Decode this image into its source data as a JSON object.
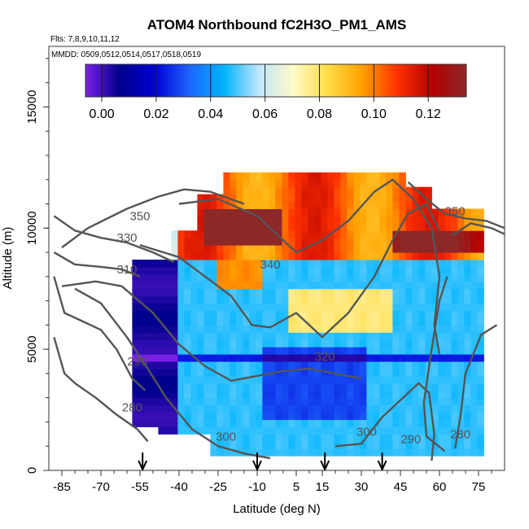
{
  "chart_data": {
    "type": "heatmap",
    "title": "ATOM4 Northbound fC2H3O_PM1_AMS",
    "subtitle_flights": "Flts: 7,8,9,10,11,12",
    "subtitle_dates": "MMDD: 0509,0512,0514,0517,0518,0519",
    "xlabel": "Latitude (deg N)",
    "ylabel": "Altitude (m)",
    "xlim": [
      -90,
      85
    ],
    "ylim": [
      0,
      17500
    ],
    "x_ticks": [
      -85,
      -70,
      -55,
      -40,
      -25,
      -10,
      5,
      15,
      30,
      45,
      60,
      75
    ],
    "y_ticks": [
      0,
      5000,
      10000,
      15000
    ],
    "colorbar": {
      "range": [
        -0.006,
        0.134
      ],
      "ticks": [
        "0.00",
        "0.02",
        "0.04",
        "0.06",
        "0.08",
        "0.10",
        "0.12"
      ],
      "tick_values": [
        0,
        0.02,
        0.04,
        0.06,
        0.08,
        0.1,
        0.12
      ]
    },
    "colors": {
      "contour": "#555555",
      "colormap": [
        "#7a1fe6",
        "#00008c",
        "#0000d2",
        "#1e64ff",
        "#00b4ff",
        "#bfe6ff",
        "#fffac8",
        "#ffdc46",
        "#ffa000",
        "#ff3200",
        "#b40000",
        "#8c2828"
      ]
    },
    "arrows_lat": [
      -54,
      -10,
      16,
      38
    ],
    "contour_labels": [
      {
        "text": "350",
        "lat": -55,
        "alt": 10500
      },
      {
        "text": "330",
        "lat": -60,
        "alt": 9600
      },
      {
        "text": "310",
        "lat": -60,
        "alt": 8300
      },
      {
        "text": "290",
        "lat": -56,
        "alt": 4500
      },
      {
        "text": "280",
        "lat": -58,
        "alt": 2600
      },
      {
        "text": "300",
        "lat": -22,
        "alt": 1400
      },
      {
        "text": "340",
        "lat": -5,
        "alt": 8500
      },
      {
        "text": "320",
        "lat": 16,
        "alt": 4700
      },
      {
        "text": "300",
        "lat": 32,
        "alt": 1600
      },
      {
        "text": "290",
        "lat": 49,
        "alt": 1300
      },
      {
        "text": "280",
        "lat": 68,
        "alt": 1500
      },
      {
        "text": "350",
        "lat": 66,
        "alt": 10700
      }
    ],
    "contours": [
      {
        "level": "350",
        "points": [
          [
            -85,
            9200
          ],
          [
            -75,
            10000
          ],
          [
            -60,
            10800
          ],
          [
            -48,
            11300
          ],
          [
            -38,
            11600
          ],
          [
            -28,
            11500
          ],
          [
            -15,
            11000
          ]
        ]
      },
      {
        "level": "330",
        "points": [
          [
            -88,
            10500
          ],
          [
            -80,
            9900
          ],
          [
            -70,
            9600
          ],
          [
            -60,
            9400
          ],
          [
            -50,
            9000
          ],
          [
            -42,
            8600
          ]
        ]
      },
      {
        "level": "310",
        "points": [
          [
            -88,
            9000
          ],
          [
            -80,
            8500
          ],
          [
            -70,
            8400
          ],
          [
            -62,
            8300
          ],
          [
            -55,
            8000
          ]
        ]
      },
      {
        "level": "290",
        "points": [
          [
            -88,
            8000
          ],
          [
            -84,
            6500
          ],
          [
            -78,
            6200
          ],
          [
            -70,
            5800
          ],
          [
            -64,
            5000
          ],
          [
            -58,
            3800
          ],
          [
            -53,
            3300
          ]
        ]
      },
      {
        "level": "280",
        "points": [
          [
            -88,
            5500
          ],
          [
            -84,
            4000
          ],
          [
            -80,
            3600
          ],
          [
            -72,
            3000
          ],
          [
            -64,
            2300
          ],
          [
            -56,
            1700
          ],
          [
            -52,
            1200
          ]
        ]
      },
      {
        "level": "300-south",
        "points": [
          [
            -80,
            7500
          ],
          [
            -70,
            6900
          ],
          [
            -60,
            5500
          ],
          [
            -52,
            4200
          ],
          [
            -45,
            3000
          ],
          [
            -35,
            1700
          ],
          [
            -25,
            1000
          ],
          [
            -15,
            700
          ],
          [
            -5,
            500
          ]
        ]
      },
      {
        "level": "320-south",
        "points": [
          [
            -85,
            7600
          ],
          [
            -72,
            7800
          ],
          [
            -62,
            7600
          ],
          [
            -50,
            6500
          ],
          [
            -40,
            5200
          ],
          [
            -30,
            4300
          ],
          [
            -20,
            3700
          ],
          [
            -10,
            3900
          ],
          [
            0,
            4100
          ],
          [
            10,
            4200
          ],
          [
            20,
            4000
          ],
          [
            30,
            3800
          ]
        ]
      },
      {
        "level": "340",
        "points": [
          [
            -55,
            9300
          ],
          [
            -40,
            8800
          ],
          [
            -30,
            8000
          ],
          [
            -20,
            7200
          ],
          [
            -12,
            6000
          ],
          [
            -5,
            5900
          ],
          [
            5,
            6500
          ],
          [
            15,
            5500
          ],
          [
            25,
            6500
          ],
          [
            35,
            8000
          ],
          [
            42,
            9500
          ],
          [
            48,
            10600
          ],
          [
            55,
            11000
          ],
          [
            60,
            9900
          ]
        ]
      },
      {
        "level": "320-north",
        "points": [
          [
            -40,
            11000
          ],
          [
            -25,
            11200
          ],
          [
            -10,
            10500
          ],
          [
            5,
            9000
          ],
          [
            15,
            9500
          ],
          [
            25,
            10300
          ],
          [
            35,
            11500
          ],
          [
            42,
            12000
          ],
          [
            50,
            11200
          ],
          [
            57,
            10000
          ],
          [
            60,
            8000
          ],
          [
            58,
            6000
          ],
          [
            60,
            4800
          ]
        ]
      },
      {
        "level": "300-north",
        "points": [
          [
            20,
            1000
          ],
          [
            30,
            1100
          ],
          [
            38,
            2200
          ],
          [
            45,
            2900
          ],
          [
            52,
            3600
          ],
          [
            56,
            3200
          ],
          [
            58,
            1500
          ],
          [
            57,
            400
          ]
        ]
      },
      {
        "level": "290-north",
        "points": [
          [
            63,
            8000
          ],
          [
            60,
            7000
          ],
          [
            57,
            5000
          ],
          [
            54,
            2800
          ],
          [
            55,
            1400
          ],
          [
            62,
            800
          ]
        ]
      },
      {
        "level": "280-north",
        "points": [
          [
            82,
            6000
          ],
          [
            76,
            5600
          ],
          [
            70,
            4000
          ],
          [
            68,
            2200
          ],
          [
            66,
            900
          ]
        ]
      },
      {
        "level": "340-north",
        "points": [
          [
            48,
            11900
          ],
          [
            55,
            11200
          ],
          [
            62,
            10600
          ],
          [
            70,
            10400
          ],
          [
            78,
            10300
          ],
          [
            85,
            10000
          ]
        ]
      },
      {
        "level": "350-north",
        "points": [
          [
            65,
            9700
          ],
          [
            72,
            10200
          ],
          [
            80,
            10000
          ],
          [
            86,
            9700
          ]
        ]
      }
    ]
  }
}
